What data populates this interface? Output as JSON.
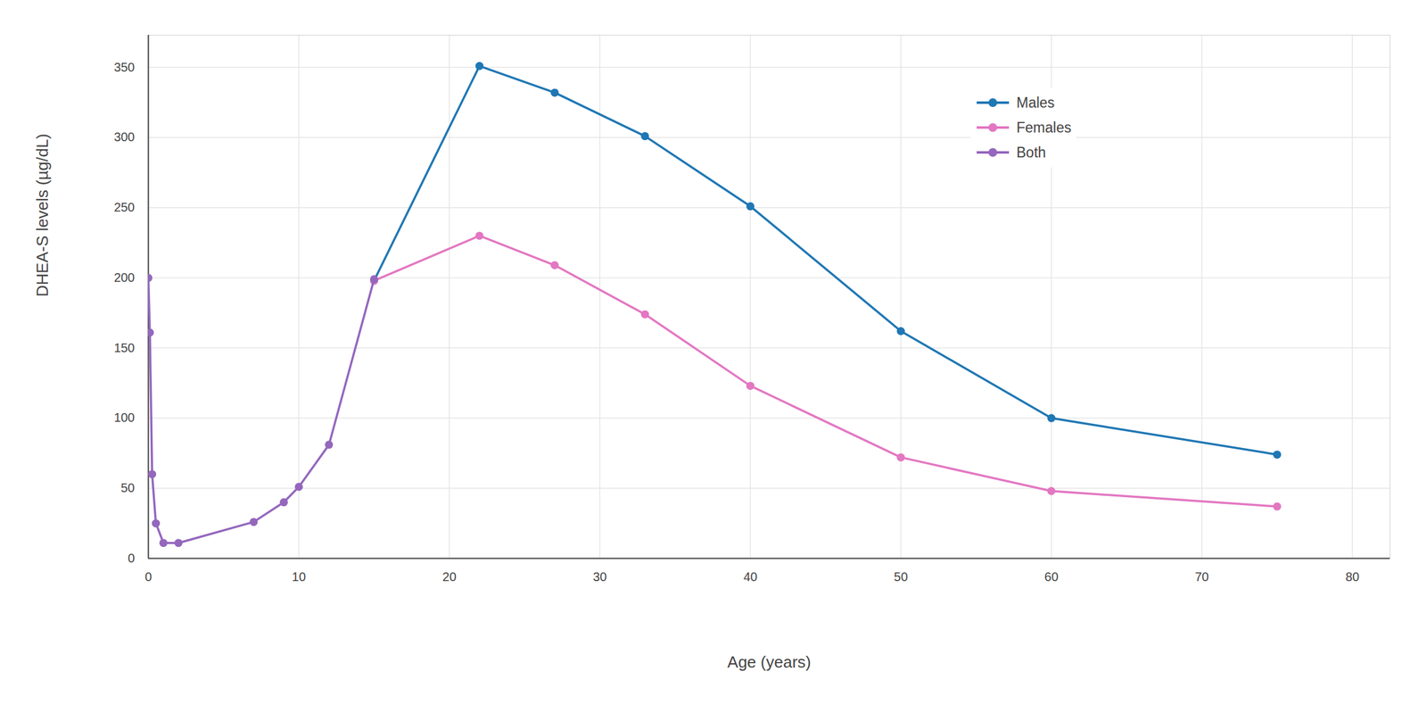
{
  "chart_data": {
    "type": "line",
    "xlabel": "Age (years)",
    "ylabel": "DHEA-S levels (µg/dL)",
    "xlim": [
      0,
      82.5
    ],
    "ylim": [
      0,
      373
    ],
    "xticks": [
      0,
      10,
      20,
      30,
      40,
      50,
      60,
      70,
      80
    ],
    "yticks": [
      0,
      50,
      100,
      150,
      200,
      250,
      300,
      350
    ],
    "grid": true,
    "legend": "top-right",
    "marker": "circle",
    "series": [
      {
        "name": "Males",
        "color": "#1f77b4",
        "x": [
          15,
          22,
          27,
          33,
          40,
          50,
          60,
          75
        ],
        "values": [
          198,
          351,
          332,
          301,
          251,
          162,
          100,
          74
        ]
      },
      {
        "name": "Females",
        "color": "#e377c2",
        "x": [
          15,
          22,
          27,
          33,
          40,
          50,
          60,
          75
        ],
        "values": [
          198,
          230,
          209,
          174,
          123,
          72,
          48,
          37
        ]
      },
      {
        "name": "Both",
        "color": "#9467bd",
        "x": [
          0,
          0.1,
          0.25,
          0.5,
          1,
          2,
          7,
          9,
          10,
          12,
          15
        ],
        "values": [
          200,
          161,
          60,
          25,
          11,
          11,
          26,
          40,
          51,
          81,
          199
        ]
      }
    ]
  }
}
